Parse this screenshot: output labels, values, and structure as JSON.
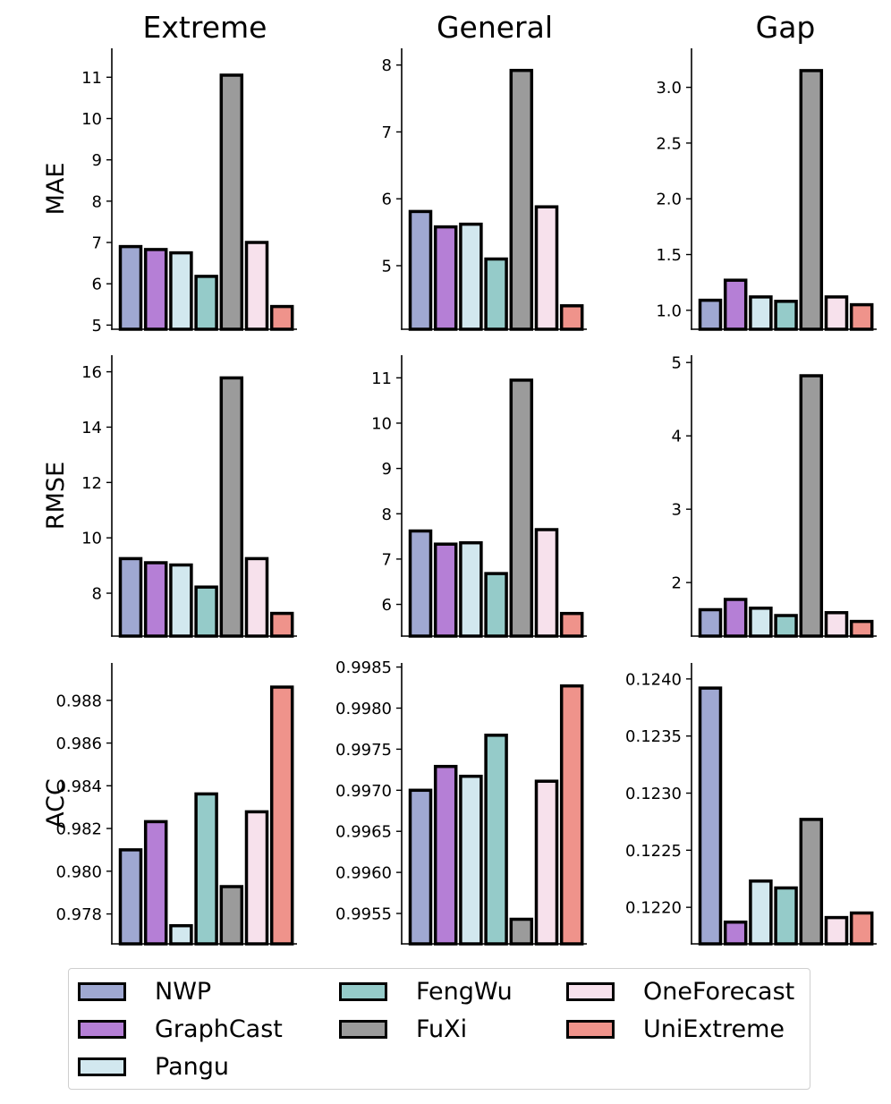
{
  "col_titles": [
    "Extreme",
    "General",
    "Gap"
  ],
  "row_labels": [
    "MAE",
    "RMSE",
    "ACC"
  ],
  "series_names": [
    "NWP",
    "GraphCast",
    "Pangu",
    "FengWu",
    "FuXi",
    "OneForecast",
    "UniExtreme"
  ],
  "colors": [
    "#9fa8d2",
    "#b57fd6",
    "#d2e8ef",
    "#95cbc9",
    "#9b9b9b",
    "#f7e1ec",
    "#ef938b"
  ],
  "chart_data": [
    {
      "type": "bar",
      "row": "MAE",
      "col": "Extreme",
      "categories": [
        "NWP",
        "GraphCast",
        "Pangu",
        "FengWu",
        "FuXi",
        "OneForecast",
        "UniExtreme"
      ],
      "values": [
        6.9,
        6.83,
        6.75,
        6.18,
        11.05,
        7.0,
        5.45
      ],
      "ylim": [
        4.9,
        11.7
      ],
      "yticks": [
        5,
        6,
        7,
        8,
        9,
        10,
        11
      ],
      "tick_labels": [
        "5",
        "6",
        "7",
        "8",
        "9",
        "10",
        "11"
      ]
    },
    {
      "type": "bar",
      "row": "MAE",
      "col": "General",
      "categories": [
        "NWP",
        "GraphCast",
        "Pangu",
        "FengWu",
        "FuXi",
        "OneForecast",
        "UniExtreme"
      ],
      "values": [
        5.81,
        5.58,
        5.62,
        5.1,
        7.92,
        5.88,
        4.4
      ],
      "ylim": [
        4.05,
        8.25
      ],
      "yticks": [
        5,
        6,
        7,
        8
      ],
      "tick_labels": [
        "5",
        "6",
        "7",
        "8"
      ]
    },
    {
      "type": "bar",
      "row": "MAE",
      "col": "Gap",
      "categories": [
        "NWP",
        "GraphCast",
        "Pangu",
        "FengWu",
        "FuXi",
        "OneForecast",
        "UniExtreme"
      ],
      "values": [
        1.09,
        1.27,
        1.12,
        1.08,
        3.15,
        1.12,
        1.05
      ],
      "ylim": [
        0.83,
        3.35
      ],
      "yticks": [
        1.0,
        1.5,
        2.0,
        2.5,
        3.0
      ],
      "tick_labels": [
        "1.0",
        "1.5",
        "2.0",
        "2.5",
        "3.0"
      ]
    },
    {
      "type": "bar",
      "row": "RMSE",
      "col": "Extreme",
      "categories": [
        "NWP",
        "GraphCast",
        "Pangu",
        "FengWu",
        "FuXi",
        "OneForecast",
        "UniExtreme"
      ],
      "values": [
        9.25,
        9.1,
        9.02,
        8.22,
        15.78,
        9.25,
        7.27
      ],
      "ylim": [
        6.45,
        16.6
      ],
      "yticks": [
        8,
        10,
        12,
        14,
        16
      ],
      "tick_labels": [
        "8",
        "10",
        "12",
        "14",
        "16"
      ]
    },
    {
      "type": "bar",
      "row": "RMSE",
      "col": "General",
      "categories": [
        "NWP",
        "GraphCast",
        "Pangu",
        "FengWu",
        "FuXi",
        "OneForecast",
        "UniExtreme"
      ],
      "values": [
        7.62,
        7.33,
        7.36,
        6.68,
        10.95,
        7.65,
        5.8
      ],
      "ylim": [
        5.3,
        11.5
      ],
      "yticks": [
        6,
        7,
        8,
        9,
        10,
        11
      ],
      "tick_labels": [
        "6",
        "7",
        "8",
        "9",
        "10",
        "11"
      ]
    },
    {
      "type": "bar",
      "row": "RMSE",
      "col": "Gap",
      "categories": [
        "NWP",
        "GraphCast",
        "Pangu",
        "FengWu",
        "FuXi",
        "OneForecast",
        "UniExtreme"
      ],
      "values": [
        1.63,
        1.77,
        1.65,
        1.55,
        4.82,
        1.59,
        1.47
      ],
      "ylim": [
        1.27,
        5.1
      ],
      "yticks": [
        2,
        3,
        4,
        5
      ],
      "tick_labels": [
        "2",
        "3",
        "4",
        "5"
      ]
    },
    {
      "type": "bar",
      "row": "ACC",
      "col": "Extreme",
      "categories": [
        "NWP",
        "GraphCast",
        "Pangu",
        "FengWu",
        "FuXi",
        "OneForecast",
        "UniExtreme"
      ],
      "values": [
        0.981,
        0.98232,
        0.97745,
        0.98362,
        0.97928,
        0.98278,
        0.98862
      ],
      "ylim": [
        0.9766,
        0.98975
      ],
      "yticks": [
        0.978,
        0.98,
        0.982,
        0.984,
        0.986,
        0.988
      ],
      "tick_labels": [
        "0.978",
        "0.980",
        "0.982",
        "0.984",
        "0.986",
        "0.988"
      ]
    },
    {
      "type": "bar",
      "row": "ACC",
      "col": "General",
      "categories": [
        "NWP",
        "GraphCast",
        "Pangu",
        "FengWu",
        "FuXi",
        "OneForecast",
        "UniExtreme"
      ],
      "values": [
        0.997,
        0.99729,
        0.99717,
        0.99767,
        0.99543,
        0.99711,
        0.99827
      ],
      "ylim": [
        0.99513,
        0.99855
      ],
      "yticks": [
        0.9955,
        0.996,
        0.9965,
        0.997,
        0.9975,
        0.998,
        0.9985
      ],
      "tick_labels": [
        "0.9955",
        "0.9960",
        "0.9965",
        "0.9970",
        "0.9975",
        "0.9980",
        "0.9985"
      ]
    },
    {
      "type": "bar",
      "row": "ACC",
      "col": "Gap",
      "categories": [
        "NWP",
        "GraphCast",
        "Pangu",
        "FengWu",
        "FuXi",
        "OneForecast",
        "UniExtreme"
      ],
      "values": [
        0.12392,
        0.12187,
        0.12223,
        0.12217,
        0.12277,
        0.12191,
        0.12195
      ],
      "ylim": [
        0.12168,
        0.12414
      ],
      "yticks": [
        0.122,
        0.1225,
        0.123,
        0.1235,
        0.124
      ],
      "tick_labels": [
        "0.1220",
        "0.1225",
        "0.1230",
        "0.1235",
        "0.1240"
      ]
    }
  ]
}
